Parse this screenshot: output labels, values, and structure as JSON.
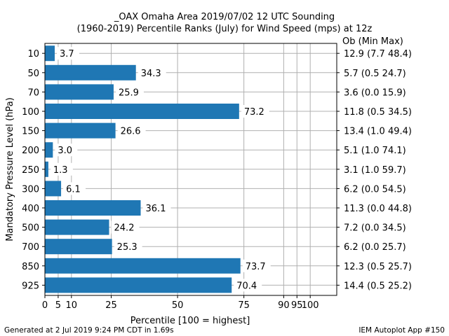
{
  "chart_data": {
    "type": "bar",
    "orientation": "horizontal",
    "title_line1": "_OAX Omaha Area  2019/07/02 12 UTC Sounding",
    "title_line2": "(1960-2019) Percentile Ranks (July) for Wind Speed (mps) at 12z",
    "xlabel": "Percentile [100 = highest]",
    "ylabel": "Mandatory Pressure Level (hPa)",
    "right_header": "Ob  (Min  Max)",
    "xlim": [
      0,
      110
    ],
    "xticks": [
      0,
      5,
      10,
      25,
      50,
      75,
      90,
      95,
      100
    ],
    "grid": true,
    "bar_color": "#1f77b4",
    "categories": [
      "10",
      "50",
      "70",
      "100",
      "150",
      "200",
      "250",
      "300",
      "400",
      "500",
      "700",
      "850",
      "925"
    ],
    "values": [
      3.7,
      34.3,
      25.9,
      73.2,
      26.6,
      3.0,
      1.3,
      6.1,
      36.1,
      24.2,
      25.3,
      73.7,
      70.4
    ],
    "value_labels": [
      "3.7",
      "34.3",
      "25.9",
      "73.2",
      "26.6",
      "3.0",
      "1.3",
      "6.1",
      "36.1",
      "24.2",
      "25.3",
      "73.7",
      "70.4"
    ],
    "right_labels": [
      "12.9 (7.7 48.4)",
      "5.7 (0.5 24.7)",
      "3.6 (0.0 15.9)",
      "11.8 (0.5 34.5)",
      "13.4 (1.0 49.4)",
      "5.1 (1.0 74.1)",
      "3.1 (1.0 59.7)",
      "6.2 (0.0 54.5)",
      "11.3 (0.0 44.8)",
      "7.2 (0.0 34.5)",
      "6.2 (0.0 25.7)",
      "12.3 (0.5 25.7)",
      "14.4 (0.5 25.2)"
    ]
  },
  "footer_left": "Generated at 2 Jul 2019 9:24 PM CDT in 1.69s",
  "footer_right": "IEM Autoplot App #150"
}
